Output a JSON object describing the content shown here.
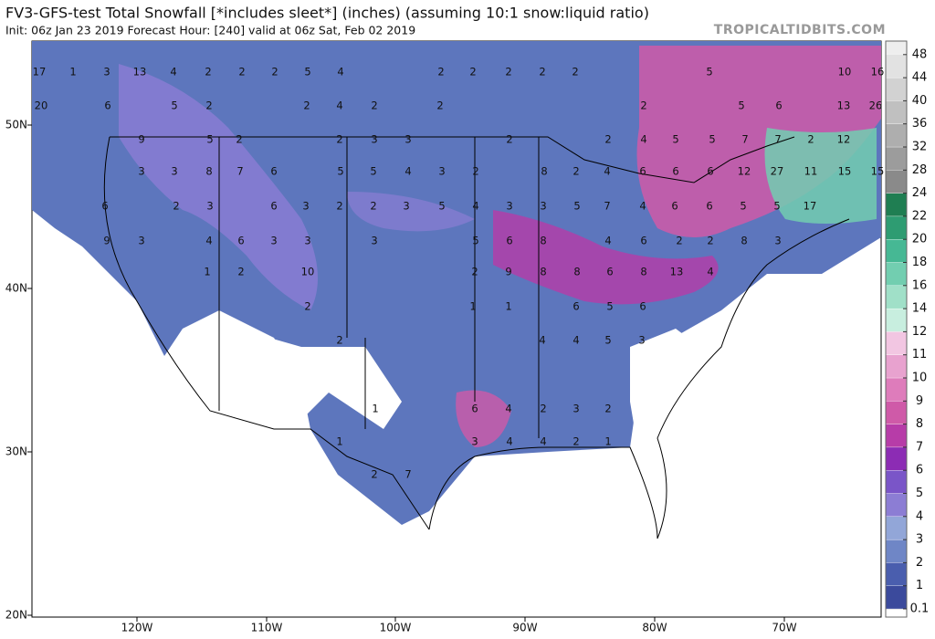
{
  "header": {
    "title": "FV3-GFS-test Total Snowfall [*includes sleet*] (inches) (assuming 10:1 snow:liquid ratio)",
    "subtitle": "Init: 06z Jan 23 2019   Forecast Hour: [240]   valid at 06z Sat, Feb 02 2019",
    "site": "TROPICALTIDBITS.COM"
  },
  "map": {
    "lat_labels": [
      "50N",
      "40N",
      "30N",
      "20N"
    ],
    "lon_labels": [
      "120W",
      "110W",
      "100W",
      "90W",
      "80W",
      "70W"
    ],
    "snow_labels": [
      17,
      1,
      3,
      13,
      4,
      2,
      2,
      2,
      5,
      4,
      2,
      2,
      2,
      2,
      2,
      5,
      10,
      16,
      20,
      6,
      5,
      2,
      2,
      4,
      2,
      2,
      2,
      5,
      6,
      13,
      26,
      9,
      5,
      2,
      2,
      3,
      3,
      2,
      2,
      4,
      5,
      5,
      7,
      7,
      2,
      12,
      3,
      3,
      8,
      7,
      6,
      5,
      5,
      4,
      3,
      2,
      8,
      2,
      4,
      6,
      6,
      6,
      12,
      27,
      11,
      15,
      15,
      6,
      2,
      3,
      6,
      3,
      2,
      2,
      3,
      5,
      4,
      3,
      3,
      5,
      7,
      4,
      6,
      6,
      5,
      5,
      17,
      9,
      3,
      4,
      6,
      3,
      3,
      3,
      5,
      6,
      8,
      4,
      6,
      2,
      2,
      8,
      3,
      1,
      2,
      10,
      2,
      9,
      8,
      8,
      6,
      8,
      13,
      4,
      2,
      1,
      1,
      6,
      5,
      6,
      2,
      4,
      4,
      5,
      3,
      1,
      6,
      4,
      2,
      3,
      2,
      1,
      3,
      4,
      4,
      2,
      1,
      2,
      7
    ]
  },
  "colorbar": {
    "levels": [
      0.1,
      1,
      2,
      3,
      4,
      5,
      6,
      7,
      8,
      9,
      10,
      11,
      12,
      14,
      16,
      18,
      20,
      22,
      24,
      28,
      32,
      36,
      40,
      44,
      48
    ],
    "colors": [
      "#ffffff",
      "#3b4a9c",
      "#4a5eae",
      "#6f86c6",
      "#92a6d8",
      "#8c7dd4",
      "#7a55c8",
      "#8c2cb4",
      "#b73ca8",
      "#cf5aa8",
      "#de7cbb",
      "#e8a2cf",
      "#f2c6e2",
      "#c8eedf",
      "#a0e0c8",
      "#72ceb0",
      "#46b894",
      "#2e9c72",
      "#1f7e52",
      "#8a8a8a",
      "#9c9c9c",
      "#aeaeae",
      "#c0c0c0",
      "#d2d2d2",
      "#e2e2e2",
      "#eeeeee"
    ]
  }
}
